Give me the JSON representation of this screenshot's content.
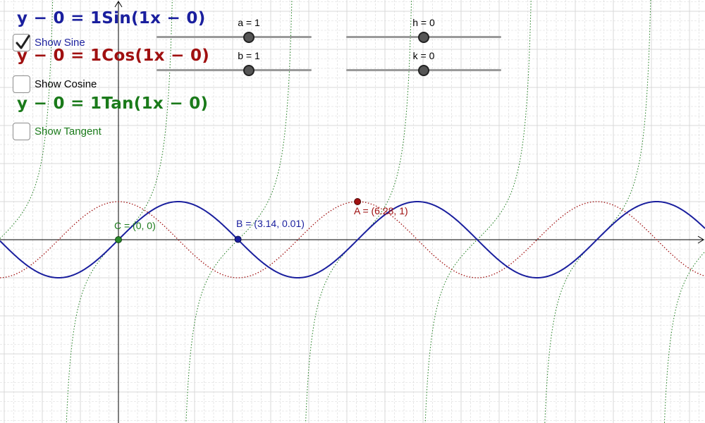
{
  "equations": {
    "sine": "y − 0 = 1Sin(1x − 0)",
    "cosine": "y − 0 = 1Cos(1x − 0)",
    "tangent": "y − 0 = 1Tan(1x − 0)"
  },
  "checkboxes": {
    "sine": {
      "label": "Show Sine",
      "checked": true
    },
    "cosine": {
      "label": "Show Cosine",
      "checked": false
    },
    "tangent": {
      "label": "Show Tangent",
      "checked": false
    }
  },
  "sliders": {
    "a": {
      "label": "a = 1",
      "value": 1
    },
    "b": {
      "label": "b = 1",
      "value": 1
    },
    "h": {
      "label": "h = 0",
      "value": 0
    },
    "k": {
      "label": "k = 0",
      "value": 0
    }
  },
  "points": {
    "A": {
      "label": "A = (6.28, 1)",
      "x": 6.28,
      "y": 1
    },
    "B": {
      "label": "B = (3.14, 0.01)",
      "x": 3.14,
      "y": 0.01
    },
    "C": {
      "label": "C = (0, 0)",
      "x": 0,
      "y": 0
    }
  },
  "colors": {
    "sine": "#1a1f9e",
    "cosine": "#a01010",
    "tangent": "#1a7a1a",
    "grid": "#d8d8d8",
    "axis": "#000000"
  }
}
